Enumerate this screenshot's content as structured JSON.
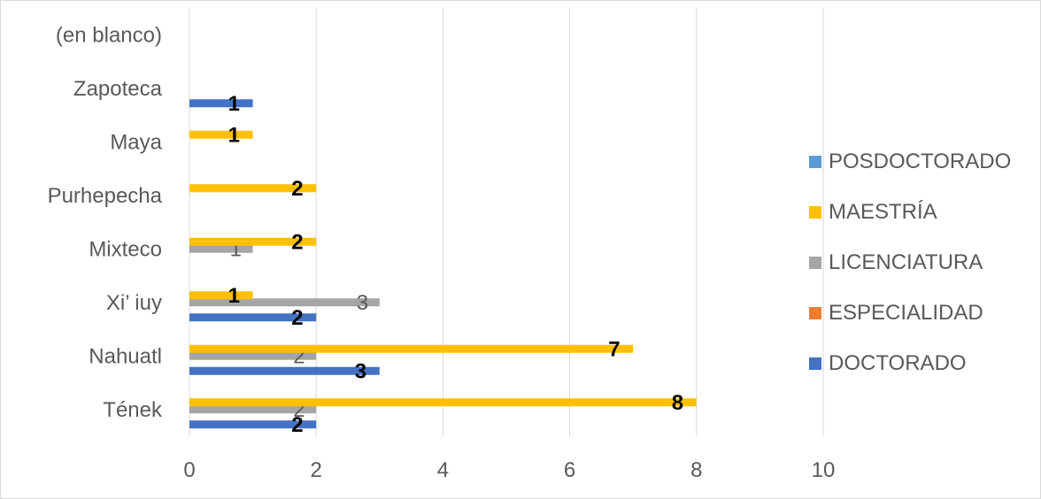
{
  "chart_data": {
    "type": "bar",
    "orientation": "horizontal",
    "categories": [
      "Tének",
      "Nahuatl",
      "Xi’ iuy",
      "Mixteco",
      "Purhepecha",
      "Maya",
      "Zapoteca",
      "(en blanco)"
    ],
    "series": [
      {
        "name": "DOCTORADO",
        "color": "#4472C4",
        "values": [
          2,
          3,
          2,
          null,
          null,
          null,
          1,
          null
        ]
      },
      {
        "name": "ESPECIALIDAD",
        "color": "#ED7D31",
        "values": [
          null,
          null,
          null,
          null,
          null,
          null,
          null,
          null
        ]
      },
      {
        "name": "LICENCIATURA",
        "color": "#A5A5A5",
        "values": [
          2,
          2,
          3,
          1,
          null,
          null,
          null,
          null
        ]
      },
      {
        "name": "MAESTRÍA",
        "color": "#FFC000",
        "values": [
          8,
          7,
          1,
          2,
          2,
          1,
          null,
          null
        ]
      },
      {
        "name": "POSDOCTORADO",
        "color": "#5B9BD5",
        "values": [
          null,
          null,
          null,
          null,
          null,
          null,
          null,
          null
        ]
      }
    ],
    "xlim": [
      0,
      10
    ],
    "xticks": [
      0,
      2,
      4,
      6,
      8,
      10
    ],
    "title": "",
    "xlabel": "",
    "ylabel": "",
    "grid": "vertical",
    "legend": {
      "position": "right",
      "order": [
        "POSDOCTORADO",
        "MAESTRÍA",
        "LICENCIATURA",
        "ESPECIALIDAD",
        "DOCTORADO"
      ]
    },
    "data_labels": {
      "bold_black_series": [
        "DOCTORADO",
        "MAESTRÍA"
      ],
      "plain_gray_series": [
        "LICENCIATURA"
      ]
    }
  }
}
